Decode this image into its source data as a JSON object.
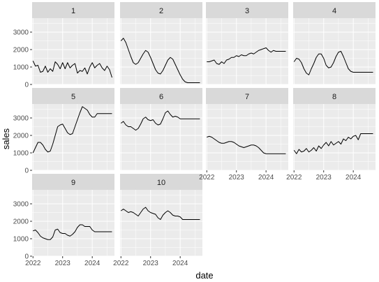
{
  "chart_data": {
    "type": "line",
    "layout": "facet_wrap",
    "xlabel": "date",
    "ylabel": "sales",
    "xlim": [
      2021.97,
      2024.75
    ],
    "ylim": [
      0,
      3800
    ],
    "x_ticks": [
      {
        "value": 2022,
        "label": "2022"
      },
      {
        "value": 2023,
        "label": "2023"
      },
      {
        "value": 2024,
        "label": "2024"
      }
    ],
    "y_ticks": [
      {
        "value": 0,
        "label": "0"
      },
      {
        "value": 1000,
        "label": "1000"
      },
      {
        "value": 2000,
        "label": "2000"
      },
      {
        "value": 3000,
        "label": "3000"
      }
    ],
    "x": [
      2022,
      2022.0833,
      2022.1667,
      2022.25,
      2022.3333,
      2022.4167,
      2022.5,
      2022.5833,
      2022.6667,
      2022.75,
      2022.8333,
      2022.9167,
      2023,
      2023.0833,
      2023.1667,
      2023.25,
      2023.3333,
      2023.4167,
      2023.5,
      2023.5833,
      2023.6667,
      2023.75,
      2023.8333,
      2023.9167,
      2024,
      2024.0833,
      2024.1667,
      2024.25,
      2024.3333,
      2024.4167,
      2024.5,
      2024.5833,
      2024.6667
    ],
    "grid": true,
    "legend": "none",
    "series": [
      {
        "name": "1",
        "values": [
          1350,
          1050,
          1100,
          700,
          750,
          1050,
          700,
          900,
          750,
          1300,
          1150,
          900,
          1250,
          900,
          1250,
          950,
          1100,
          1200,
          650,
          800,
          750,
          950,
          600,
          1000,
          1250,
          950,
          1100,
          1200,
          950,
          800,
          1050,
          850,
          400
        ]
      },
      {
        "name": "2",
        "values": [
          2500,
          2650,
          2400,
          2000,
          1600,
          1250,
          1150,
          1250,
          1500,
          1750,
          1950,
          1850,
          1550,
          1200,
          850,
          650,
          600,
          800,
          1100,
          1400,
          1550,
          1450,
          1150,
          850,
          550,
          300,
          150,
          100,
          100,
          100,
          100,
          100,
          100
        ]
      },
      {
        "name": "3",
        "values": [
          1300,
          1300,
          1350,
          1400,
          1200,
          1150,
          1300,
          1200,
          1400,
          1450,
          1550,
          1550,
          1650,
          1600,
          1700,
          1650,
          1650,
          1750,
          1800,
          1750,
          1850,
          1950,
          2000,
          2050,
          2100,
          1950,
          1850,
          1950,
          1900,
          1900,
          1900,
          1900,
          1900
        ]
      },
      {
        "name": "4",
        "values": [
          1300,
          1500,
          1450,
          1250,
          900,
          650,
          550,
          900,
          1200,
          1550,
          1750,
          1750,
          1500,
          1100,
          950,
          1000,
          1250,
          1600,
          1850,
          1900,
          1600,
          1250,
          900,
          750,
          700,
          700,
          700,
          700,
          700,
          700,
          700,
          700,
          700
        ]
      },
      {
        "name": "5",
        "values": [
          1000,
          1300,
          1600,
          1600,
          1450,
          1200,
          1050,
          1100,
          1500,
          2000,
          2500,
          2600,
          2650,
          2400,
          2150,
          2050,
          2100,
          2500,
          2900,
          3300,
          3650,
          3550,
          3450,
          3200,
          3050,
          3050,
          3250,
          3250,
          3250,
          3250,
          3250,
          3250,
          3250
        ]
      },
      {
        "name": "6",
        "values": [
          2700,
          2800,
          2600,
          2500,
          2500,
          2400,
          2300,
          2400,
          2650,
          2950,
          3050,
          2900,
          2850,
          2900,
          2700,
          2600,
          2650,
          2950,
          3300,
          3400,
          3200,
          3050,
          3100,
          3050,
          2950,
          2950,
          2950,
          2950,
          2950,
          2950,
          2950,
          2950,
          2950
        ]
      },
      {
        "name": "7",
        "values": [
          1900,
          1950,
          1900,
          1800,
          1700,
          1600,
          1550,
          1550,
          1600,
          1650,
          1650,
          1600,
          1500,
          1400,
          1350,
          1300,
          1350,
          1400,
          1450,
          1450,
          1400,
          1300,
          1150,
          1000,
          950,
          950,
          950,
          950,
          950,
          950,
          950,
          950,
          950
        ]
      },
      {
        "name": "8",
        "values": [
          1150,
          950,
          1200,
          1050,
          1100,
          1250,
          1050,
          1150,
          1300,
          1100,
          1400,
          1250,
          1450,
          1600,
          1400,
          1650,
          1450,
          1550,
          1650,
          1500,
          1800,
          1700,
          1900,
          1800,
          1950,
          2000,
          1750,
          2100,
          2100,
          2100,
          2100,
          2100,
          2100
        ]
      },
      {
        "name": "9",
        "values": [
          1450,
          1500,
          1350,
          1150,
          1050,
          1000,
          950,
          950,
          1100,
          1500,
          1550,
          1350,
          1300,
          1300,
          1200,
          1150,
          1250,
          1400,
          1650,
          1800,
          1800,
          1700,
          1700,
          1700,
          1500,
          1400,
          1400,
          1400,
          1400,
          1400,
          1400,
          1400,
          1400
        ]
      },
      {
        "name": "10",
        "values": [
          2600,
          2700,
          2600,
          2500,
          2550,
          2500,
          2400,
          2300,
          2500,
          2700,
          2800,
          2600,
          2500,
          2450,
          2400,
          2200,
          2100,
          2350,
          2500,
          2600,
          2500,
          2350,
          2300,
          2300,
          2250,
          2100,
          2100,
          2100,
          2100,
          2100,
          2100,
          2100,
          2100
        ]
      }
    ]
  }
}
